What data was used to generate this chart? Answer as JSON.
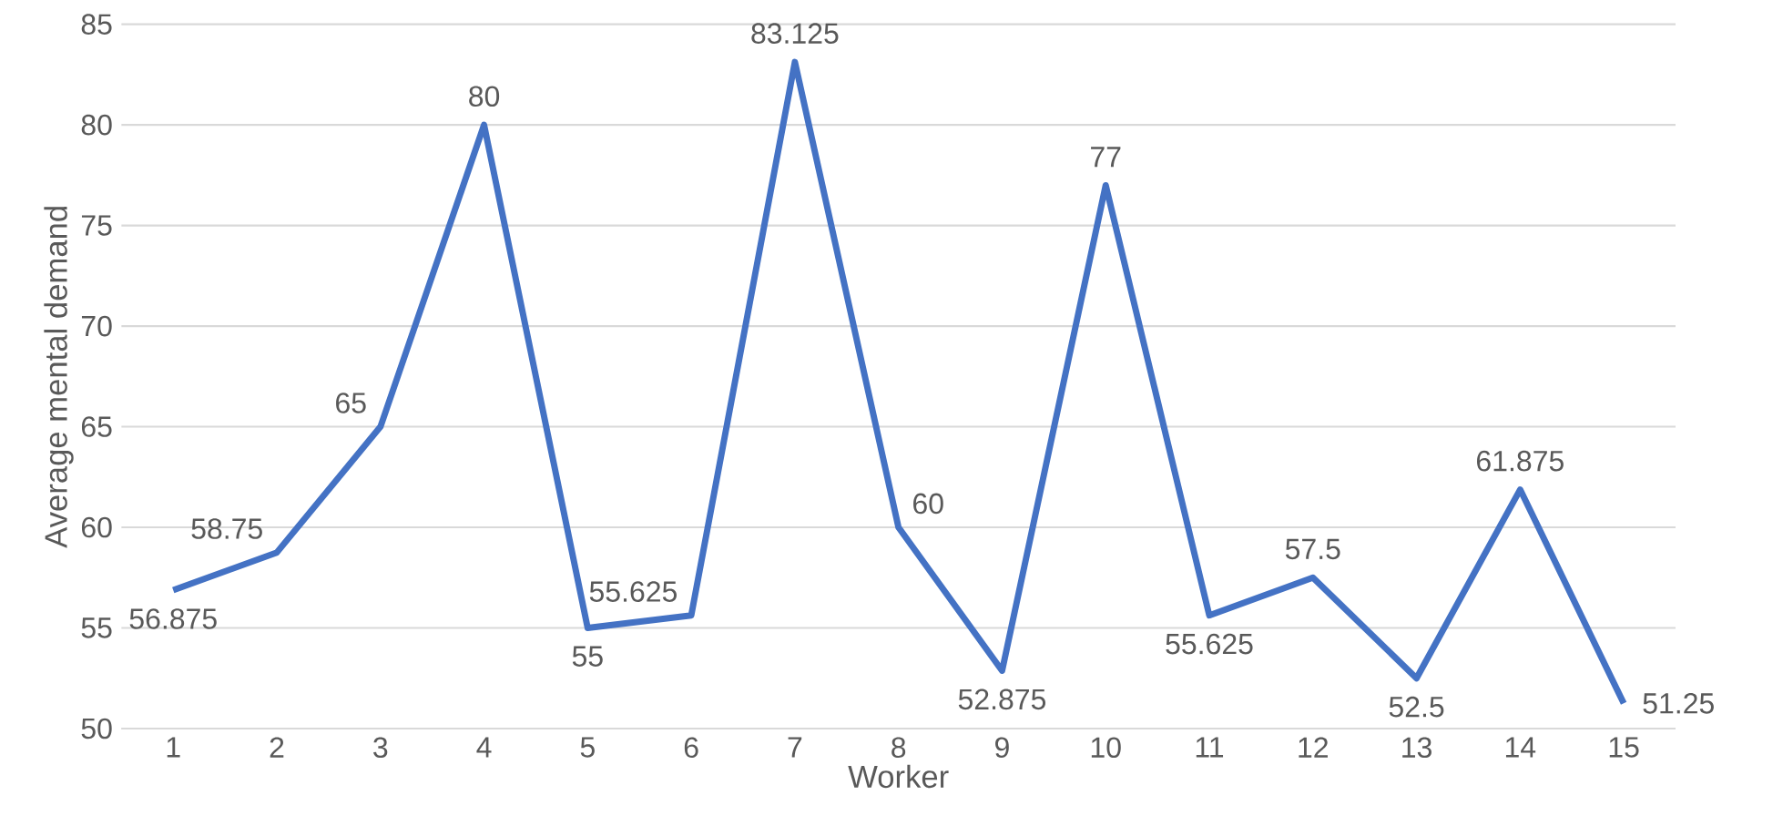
{
  "chart_data": {
    "type": "line",
    "xlabel": "Worker",
    "ylabel": "Average mental demand",
    "categories": [
      "1",
      "2",
      "3",
      "4",
      "5",
      "6",
      "7",
      "8",
      "9",
      "10",
      "11",
      "12",
      "13",
      "14",
      "15"
    ],
    "values": [
      56.875,
      58.75,
      65,
      80,
      55,
      55.625,
      83.125,
      60,
      52.875,
      77,
      55.625,
      57.5,
      52.5,
      61.875,
      51.25
    ],
    "color": "#4472c4",
    "ylim": [
      50,
      85
    ],
    "yticks": [
      50,
      55,
      60,
      65,
      70,
      75,
      80,
      85
    ],
    "grid": "y",
    "data_labels": true
  }
}
